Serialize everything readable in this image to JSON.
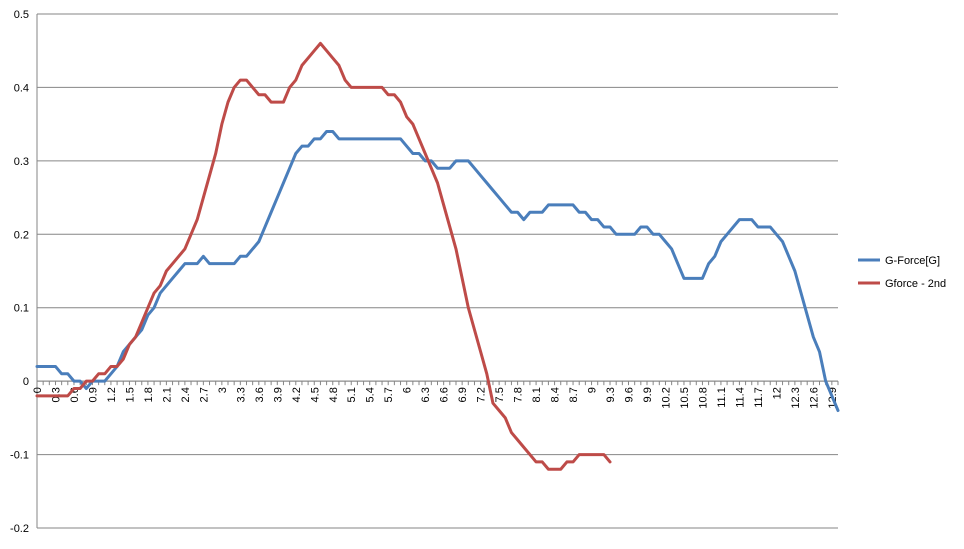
{
  "chart_data": {
    "type": "line",
    "title": "",
    "xlabel": "",
    "ylabel": "",
    "ylim": [
      -0.2,
      0.5
    ],
    "yticks": [
      -0.2,
      -0.1,
      0,
      0.1,
      0.2,
      0.3,
      0.4,
      0.5
    ],
    "ytick_labels": [
      "-0.2",
      "-0.1",
      "0",
      "0.1",
      "0.2",
      "0.3",
      "0.4",
      "0.5"
    ],
    "x_categories": [
      "0",
      "0.1",
      "0.2",
      "0.3",
      "0.4",
      "0.5",
      "0.6",
      "0.7",
      "0.8",
      "0.9",
      "1",
      "1.1",
      "1.2",
      "1.3",
      "1.4",
      "1.5",
      "1.6",
      "1.7",
      "1.8",
      "1.9",
      "2",
      "2.1",
      "2.2",
      "2.3",
      "2.4",
      "2.5",
      "2.6",
      "2.7",
      "2.8",
      "2.9",
      "3",
      "3.1",
      "3.2",
      "3.3",
      "3.4",
      "3.5",
      "3.6",
      "3.7",
      "3.8",
      "3.9",
      "4",
      "4.1",
      "4.2",
      "4.3",
      "4.4",
      "4.5",
      "4.6",
      "4.7",
      "4.8",
      "4.9",
      "5",
      "5.1",
      "5.2",
      "5.3",
      "5.4",
      "5.5",
      "5.6",
      "5.7",
      "5.8",
      "5.9",
      "6",
      "6.1",
      "6.2",
      "6.3",
      "6.4",
      "6.5",
      "6.6",
      "6.7",
      "6.8",
      "6.9",
      "7",
      "7.1",
      "7.2",
      "7.3",
      "7.4",
      "7.5",
      "7.6",
      "7.7",
      "7.8",
      "7.9",
      "8",
      "8.1",
      "8.2",
      "8.3",
      "8.4",
      "8.5",
      "8.6",
      "8.7",
      "8.8",
      "8.9",
      "9",
      "9.1",
      "9.2",
      "9.3",
      "9.4",
      "9.5",
      "9.6",
      "9.7",
      "9.8",
      "9.9",
      "10",
      "10.1",
      "10.2",
      "10.3",
      "10.4",
      "10.5",
      "10.6",
      "10.7",
      "10.8",
      "10.9",
      "11",
      "11.1",
      "11.2",
      "11.3",
      "11.4",
      "11.5",
      "11.6",
      "11.7",
      "11.8",
      "11.9",
      "12",
      "12.1",
      "12.2",
      "12.3",
      "12.4",
      "12.5",
      "12.6",
      "12.7",
      "12.8",
      "12.9",
      "13"
    ],
    "x_tick_labels": [
      "0",
      "0.3",
      "0.6",
      "0.9",
      "1.2",
      "1.5",
      "1.8",
      "2.1",
      "2.4",
      "2.7",
      "3",
      "3.3",
      "3.6",
      "3.9",
      "4.2",
      "4.5",
      "4.8",
      "5.1",
      "5.4",
      "5.7",
      "6",
      "6.3",
      "6.6",
      "6.9",
      "7.2",
      "7.5",
      "7.8",
      "8.1",
      "8.4",
      "8.7",
      "9",
      "9.3",
      "9.6",
      "9.9",
      "10.2",
      "10.5",
      "10.8",
      "11.1",
      "11.4",
      "11.7",
      "12",
      "12.3",
      "12.6",
      "12.9"
    ],
    "gridlines": "horizontal",
    "legend_position": "right",
    "series": [
      {
        "name": "G-Force[G]",
        "color": "#4a7ebb",
        "values": [
          0.02,
          0.02,
          0.02,
          0.02,
          0.01,
          0.01,
          0,
          0,
          -0.01,
          0,
          0,
          0,
          0.01,
          0.02,
          0.04,
          0.05,
          0.06,
          0.07,
          0.09,
          0.1,
          0.12,
          0.13,
          0.14,
          0.15,
          0.16,
          0.16,
          0.16,
          0.17,
          0.16,
          0.16,
          0.16,
          0.16,
          0.16,
          0.17,
          0.17,
          0.18,
          0.19,
          0.21,
          0.23,
          0.25,
          0.27,
          0.29,
          0.31,
          0.32,
          0.32,
          0.33,
          0.33,
          0.34,
          0.34,
          0.33,
          0.33,
          0.33,
          0.33,
          0.33,
          0.33,
          0.33,
          0.33,
          0.33,
          0.33,
          0.33,
          0.32,
          0.31,
          0.31,
          0.3,
          0.3,
          0.29,
          0.29,
          0.29,
          0.3,
          0.3,
          0.3,
          0.29,
          0.28,
          0.27,
          0.26,
          0.25,
          0.24,
          0.23,
          0.23,
          0.22,
          0.23,
          0.23,
          0.23,
          0.24,
          0.24,
          0.24,
          0.24,
          0.24,
          0.23,
          0.23,
          0.22,
          0.22,
          0.21,
          0.21,
          0.2,
          0.2,
          0.2,
          0.2,
          0.21,
          0.21,
          0.2,
          0.2,
          0.19,
          0.18,
          0.16,
          0.14,
          0.14,
          0.14,
          0.14,
          0.16,
          0.17,
          0.19,
          0.2,
          0.21,
          0.22,
          0.22,
          0.22,
          0.21,
          0.21,
          0.21,
          0.2,
          0.19,
          0.17,
          0.15,
          0.12,
          0.09,
          0.06,
          0.04,
          0,
          -0.02,
          -0.04
        ]
      },
      {
        "name": "Gforce - 2nd",
        "color": "#be4b48",
        "values": [
          -0.02,
          -0.02,
          -0.02,
          -0.02,
          -0.02,
          -0.02,
          -0.01,
          -0.01,
          0,
          0,
          0.01,
          0.01,
          0.02,
          0.02,
          0.03,
          0.05,
          0.06,
          0.08,
          0.1,
          0.12,
          0.13,
          0.15,
          0.16,
          0.17,
          0.18,
          0.2,
          0.22,
          0.25,
          0.28,
          0.31,
          0.35,
          0.38,
          0.4,
          0.41,
          0.41,
          0.4,
          0.39,
          0.39,
          0.38,
          0.38,
          0.38,
          0.4,
          0.41,
          0.43,
          0.44,
          0.45,
          0.46,
          0.45,
          0.44,
          0.43,
          0.41,
          0.4,
          0.4,
          0.4,
          0.4,
          0.4,
          0.4,
          0.39,
          0.39,
          0.38,
          0.36,
          0.35,
          0.33,
          0.31,
          0.29,
          0.27,
          0.24,
          0.21,
          0.18,
          0.14,
          0.1,
          0.07,
          0.04,
          0.01,
          -0.03,
          -0.04,
          -0.05,
          -0.07,
          -0.08,
          -0.09,
          -0.1,
          -0.11,
          -0.11,
          -0.12,
          -0.12,
          -0.12,
          -0.11,
          -0.11,
          -0.1,
          -0.1,
          -0.1,
          -0.1,
          -0.1,
          -0.11
        ]
      }
    ]
  }
}
